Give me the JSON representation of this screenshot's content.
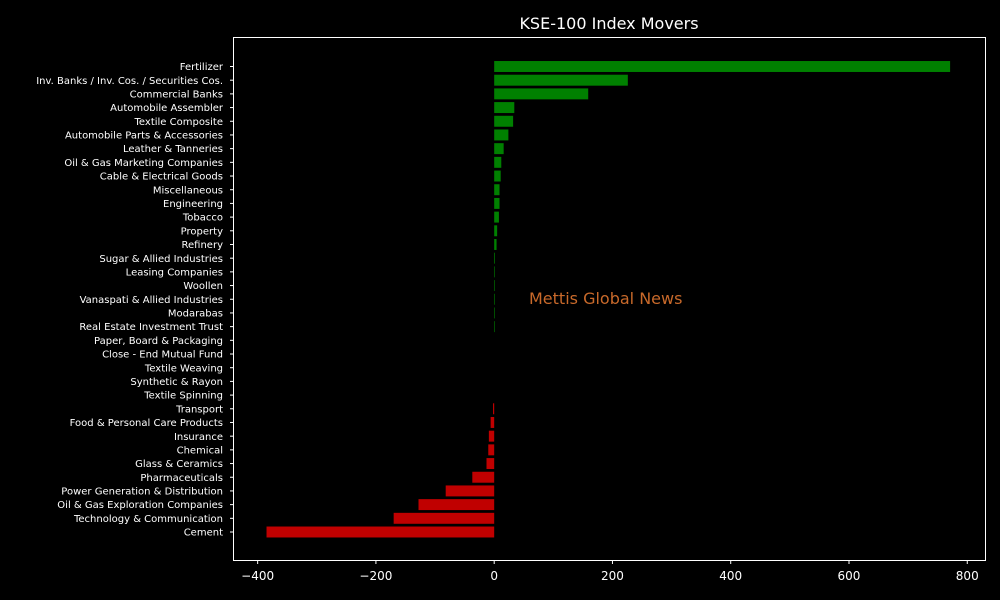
{
  "colors": {
    "background": "#000000",
    "positive": "#008000",
    "negative": "#c00000",
    "text": "#ffffff",
    "watermark": "#c8692a"
  },
  "watermark": "Mettis Global News",
  "chart_data": {
    "type": "bar",
    "orientation": "horizontal",
    "title": "KSE-100 Index Movers",
    "xlabel": "",
    "ylabel": "",
    "xlim": [
      -440,
      830
    ],
    "xticks": [
      -400,
      -200,
      0,
      200,
      400,
      600,
      800
    ],
    "xtick_labels": [
      "−400",
      "−200",
      "0",
      "200",
      "400",
      "600",
      "800"
    ],
    "grid": false,
    "categories": [
      "Fertilizer",
      "Inv. Banks / Inv. Cos. / Securities Cos.",
      "Commercial Banks",
      "Automobile Assembler",
      "Textile Composite",
      "Automobile Parts & Accessories",
      "Leather & Tanneries",
      "Oil & Gas Marketing Companies",
      "Cable & Electrical Goods",
      "Miscellaneous",
      "Engineering",
      "Tobacco",
      "Property",
      "Refinery",
      "Sugar & Allied Industries",
      "Leasing Companies",
      "Woollen",
      "Vanaspati & Allied Industries",
      "Modarabas",
      "Real Estate Investment Trust",
      "Paper, Board & Packaging",
      "Close - End Mutual Fund",
      "Textile Weaving",
      "Synthetic & Rayon",
      "Textile Spinning",
      "Transport",
      "Food & Personal Care Products",
      "Insurance",
      "Chemical",
      "Glass & Ceramics",
      "Pharmaceuticals",
      "Power Generation & Distribution",
      "Oil & Gas Exploration Companies",
      "Technology & Communication",
      "Cement"
    ],
    "values": [
      771,
      226,
      159,
      34,
      32,
      24,
      16,
      12,
      11,
      9,
      9,
      8,
      5,
      4,
      1.2,
      1.0,
      0.8,
      0.6,
      0.5,
      0.3,
      0,
      0,
      0,
      0,
      0,
      -2,
      -6,
      -9,
      -10,
      -13,
      -37,
      -82,
      -128,
      -170,
      -385
    ]
  }
}
